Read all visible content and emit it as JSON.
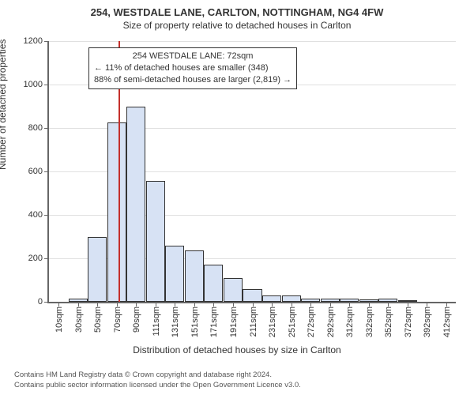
{
  "title": "254, WESTDALE LANE, CARLTON, NOTTINGHAM, NG4 4FW",
  "subtitle": "Size of property relative to detached houses in Carlton",
  "yaxis_label": "Number of detached properties",
  "xaxis_label": "Distribution of detached houses by size in Carlton",
  "annotation": {
    "line1": "254 WESTDALE LANE: 72sqm",
    "line2": "← 11% of detached houses are smaller (348)",
    "line3": "88% of semi-detached houses are larger (2,819) →"
  },
  "footer_line1": "Contains HM Land Registry data © Crown copyright and database right 2024.",
  "footer_line2": "Contains public sector information licensed under the Open Government Licence v3.0.",
  "chart": {
    "type": "histogram",
    "ylim": [
      0,
      1200
    ],
    "yticks": [
      0,
      200,
      400,
      600,
      800,
      1000,
      1200
    ],
    "xtick_labels": [
      "10sqm",
      "30sqm",
      "50sqm",
      "70sqm",
      "90sqm",
      "111sqm",
      "131sqm",
      "151sqm",
      "171sqm",
      "191sqm",
      "211sqm",
      "231sqm",
      "251sqm",
      "272sqm",
      "292sqm",
      "312sqm",
      "332sqm",
      "352sqm",
      "372sqm",
      "392sqm",
      "412sqm"
    ],
    "bar_values": [
      0,
      15,
      300,
      825,
      900,
      555,
      260,
      235,
      170,
      110,
      60,
      30,
      30,
      15,
      15,
      15,
      10,
      15,
      5,
      0,
      0
    ],
    "bar_fill": "#d7e2f4",
    "bar_border": "#333333",
    "ref_line_value": 72,
    "ref_line_x_domain": [
      10,
      412
    ],
    "ref_line_color": "#c4302b",
    "grid_color": "#e0e0e0",
    "axis_color": "#666666",
    "bg_color": "#ffffff"
  }
}
